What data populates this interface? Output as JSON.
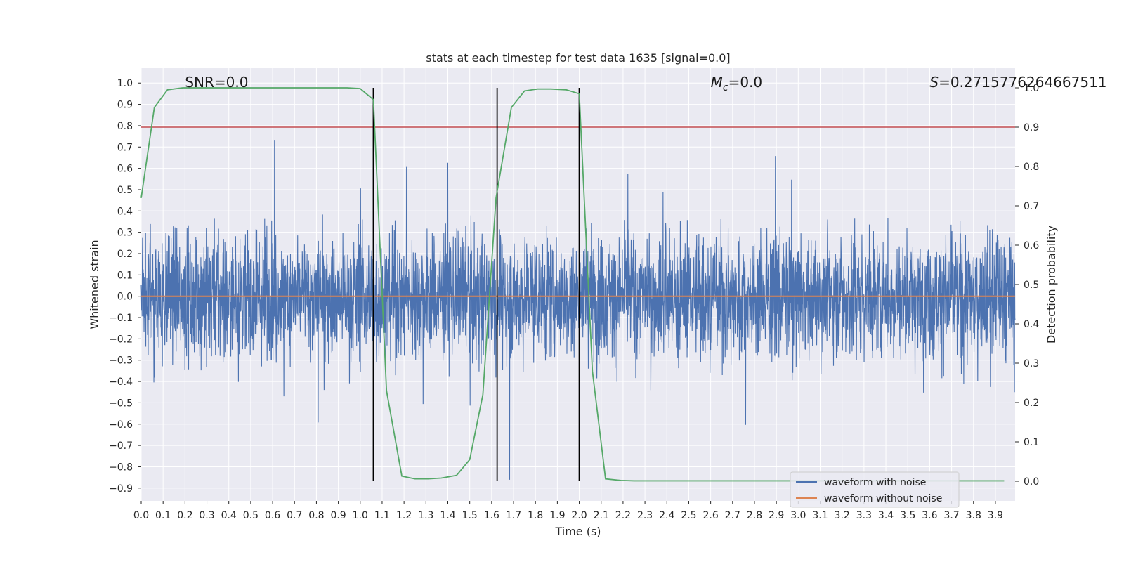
{
  "chart_data": {
    "type": "line",
    "title": "stats at each timestep for test data 1635 [signal=0.0]",
    "xlabel": "Time (s)",
    "ylabel": "Whitened strain",
    "ylabel_right": "Detection probability",
    "xlim": [
      0.0,
      3.99
    ],
    "ylim": [
      -0.96,
      1.07
    ],
    "ylim_right": [
      -0.05,
      1.05
    ],
    "x_ticks": [
      0.0,
      0.1,
      0.2,
      0.3,
      0.4,
      0.5,
      0.6,
      0.7,
      0.8,
      0.9,
      1.0,
      1.1,
      1.2,
      1.3,
      1.4,
      1.5,
      1.6,
      1.7,
      1.8,
      1.9,
      2.0,
      2.1,
      2.2,
      2.3,
      2.4,
      2.5,
      2.6,
      2.7,
      2.8,
      2.9,
      3.0,
      3.1,
      3.2,
      3.3,
      3.4,
      3.5,
      3.6,
      3.7,
      3.8,
      3.9
    ],
    "y_ticks": [
      -0.9,
      -0.8,
      -0.7,
      -0.6,
      -0.5,
      -0.4,
      -0.3,
      -0.2,
      -0.1,
      0.0,
      0.1,
      0.2,
      0.3,
      0.4,
      0.5,
      0.6,
      0.7,
      0.8,
      0.9,
      1.0
    ],
    "y_ticks_right": [
      0.0,
      0.1,
      0.2,
      0.3,
      0.4,
      0.5,
      0.6,
      0.7,
      0.8,
      0.9,
      1.0
    ],
    "grid": true,
    "legend_placement": "lower-right",
    "series": [
      {
        "name": "waveform with noise",
        "color": "#4c72b0",
        "kind": "noise",
        "x_range": [
          0.0,
          3.99
        ],
        "approx_range": [
          -0.9,
          1.0
        ]
      },
      {
        "name": "waveform without noise",
        "color": "#dd8452",
        "x": [
          0.0,
          3.99
        ],
        "y": [
          0.0,
          0.0
        ]
      },
      {
        "color": "#55a868",
        "axis": "right",
        "x": [
          0.0,
          0.06,
          0.12,
          0.19,
          0.25,
          0.31,
          0.37,
          0.44,
          0.5,
          0.56,
          0.62,
          0.69,
          0.75,
          0.81,
          0.87,
          0.94,
          1.0,
          1.06,
          1.12,
          1.19,
          1.25,
          1.31,
          1.37,
          1.44,
          1.5,
          1.56,
          1.62,
          1.69,
          1.75,
          1.81,
          1.87,
          1.94,
          2.0,
          2.06,
          2.12,
          2.19,
          2.25,
          2.31,
          2.37,
          2.44,
          2.5,
          2.56,
          2.62,
          2.69,
          2.75,
          2.81,
          2.87,
          2.94,
          3.0,
          3.06,
          3.12,
          3.19,
          3.25,
          3.31,
          3.37,
          3.44,
          3.5,
          3.56,
          3.62,
          3.69,
          3.75,
          3.81,
          3.87,
          3.94
        ],
        "y": [
          0.72,
          0.95,
          0.995,
          1.0,
          1.0,
          1.0,
          1.0,
          1.0,
          1.0,
          1.0,
          1.0,
          1.0,
          1.0,
          1.0,
          1.0,
          1.0,
          0.998,
          0.97,
          0.23,
          0.013,
          0.006,
          0.006,
          0.008,
          0.015,
          0.055,
          0.22,
          0.72,
          0.95,
          0.992,
          0.997,
          0.997,
          0.995,
          0.985,
          0.28,
          0.006,
          0.002,
          0.001,
          0.001,
          0.001,
          0.001,
          0.001,
          0.001,
          0.001,
          0.001,
          0.001,
          0.001,
          0.001,
          0.001,
          0.001,
          0.001,
          0.001,
          0.001,
          0.001,
          0.001,
          0.001,
          0.001,
          0.001,
          0.001,
          0.001,
          0.001,
          0.001,
          0.001,
          0.001,
          0.001
        ]
      }
    ],
    "threshold": {
      "axis": "right",
      "value": 0.9,
      "color": "#c44e52"
    },
    "vlines": [
      1.06,
      1.625,
      2.0
    ],
    "vline_color": "#000000",
    "annotations": [
      {
        "text": "SNR=0.0",
        "x": 0.2
      },
      {
        "text": "=0.0",
        "math": "M",
        "sub": "c",
        "x": 2.6
      },
      {
        "text": "=0.2715776264667511",
        "math": "S",
        "x": 3.6
      }
    ]
  }
}
